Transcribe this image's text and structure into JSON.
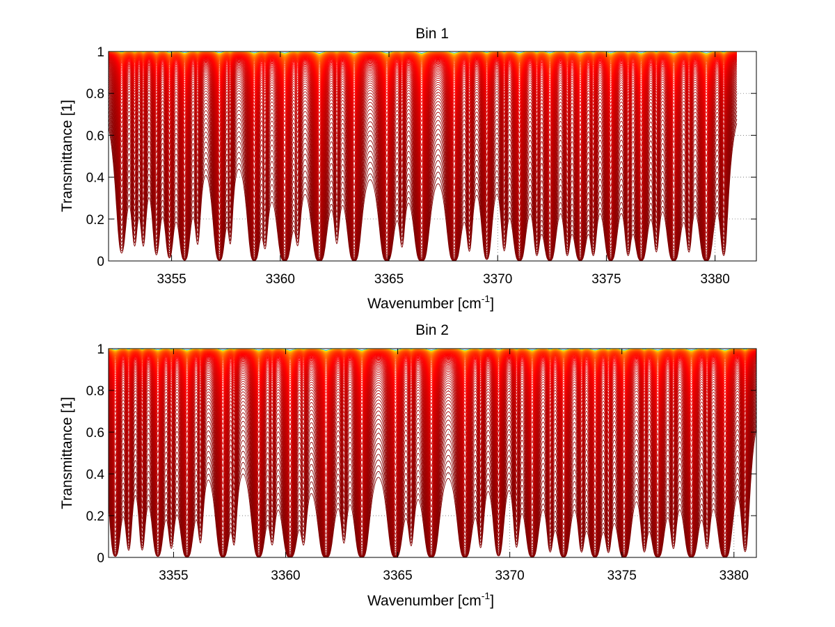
{
  "chart_data": [
    {
      "type": "line",
      "title": "Bin 1",
      "xlabel_main": "Wavenumber [cm",
      "xlabel_sup": "-1",
      "xlabel_end": "]",
      "ylabel": "Transmittance [1]",
      "xlim": [
        3352.1,
        3381.9
      ],
      "ylim": [
        0,
        1
      ],
      "x_data_end": 3381.0,
      "xticks": [
        3355,
        3360,
        3365,
        3370,
        3375,
        3380
      ],
      "yticks": [
        0,
        0.2,
        0.4,
        0.6,
        0.8,
        1
      ],
      "grid": true,
      "n_series": 90,
      "colormap": "jet",
      "absorption_lines": [
        [
          3352.7,
          0.33,
          0.18
        ],
        [
          3353.3,
          0.22,
          0.13
        ],
        [
          3353.7,
          0.22,
          0.12
        ],
        [
          3354.3,
          0.33,
          0.14
        ],
        [
          3354.9,
          0.4,
          0.14
        ],
        [
          3355.6,
          0.58,
          0.16
        ],
        [
          3356.2,
          0.2,
          0.12
        ],
        [
          3357.2,
          0.62,
          0.16
        ],
        [
          3357.7,
          0.18,
          0.1
        ],
        [
          3358.8,
          0.66,
          0.16
        ],
        [
          3359.3,
          0.2,
          0.12
        ],
        [
          3360.2,
          0.72,
          0.18
        ],
        [
          3360.8,
          0.18,
          0.12
        ],
        [
          3361.8,
          0.78,
          0.18
        ],
        [
          3362.6,
          0.18,
          0.12
        ],
        [
          3363.4,
          0.72,
          0.17
        ],
        [
          3364.9,
          0.72,
          0.18
        ],
        [
          3365.6,
          0.2,
          0.12
        ],
        [
          3366.5,
          0.78,
          0.18
        ],
        [
          3368.0,
          0.72,
          0.18
        ],
        [
          3368.7,
          0.25,
          0.12
        ],
        [
          3369.5,
          0.5,
          0.15
        ],
        [
          3370.3,
          0.25,
          0.12
        ],
        [
          3371.0,
          0.68,
          0.17
        ],
        [
          3371.8,
          0.3,
          0.12
        ],
        [
          3372.4,
          0.65,
          0.17
        ],
        [
          3373.2,
          0.3,
          0.12
        ],
        [
          3373.8,
          0.64,
          0.17
        ],
        [
          3374.4,
          0.3,
          0.12
        ],
        [
          3375.2,
          0.66,
          0.17
        ],
        [
          3376.0,
          0.3,
          0.12
        ],
        [
          3376.6,
          0.65,
          0.17
        ],
        [
          3377.3,
          0.25,
          0.12
        ],
        [
          3378.1,
          0.68,
          0.18
        ],
        [
          3378.8,
          0.25,
          0.12
        ],
        [
          3379.6,
          0.72,
          0.18
        ],
        [
          3380.4,
          0.35,
          0.13
        ]
      ]
    },
    {
      "type": "line",
      "title": "Bin 2",
      "xlabel_main": "Wavenumber [cm",
      "xlabel_sup": "-1",
      "xlabel_end": "]",
      "ylabel": "Transmittance [1]",
      "xlim": [
        3352.1,
        3381.0
      ],
      "ylim": [
        0,
        1
      ],
      "x_data_end": 3381.0,
      "xticks": [
        3355,
        3360,
        3365,
        3370,
        3375,
        3380
      ],
      "yticks": [
        0,
        0.2,
        0.4,
        0.6,
        0.8,
        1
      ],
      "grid": true,
      "n_series": 90,
      "colormap": "jet",
      "absorption_lines": [
        [
          3352.4,
          0.55,
          0.16
        ],
        [
          3353.0,
          0.3,
          0.12
        ],
        [
          3353.6,
          0.3,
          0.12
        ],
        [
          3354.3,
          0.55,
          0.16
        ],
        [
          3354.9,
          0.25,
          0.12
        ],
        [
          3355.6,
          0.66,
          0.17
        ],
        [
          3356.2,
          0.2,
          0.11
        ],
        [
          3357.2,
          0.68,
          0.17
        ],
        [
          3357.7,
          0.2,
          0.1
        ],
        [
          3358.8,
          0.66,
          0.17
        ],
        [
          3359.4,
          0.2,
          0.12
        ],
        [
          3360.2,
          0.74,
          0.18
        ],
        [
          3360.8,
          0.2,
          0.12
        ],
        [
          3361.8,
          0.78,
          0.18
        ],
        [
          3362.6,
          0.2,
          0.12
        ],
        [
          3363.4,
          0.74,
          0.17
        ],
        [
          3364.9,
          0.72,
          0.18
        ],
        [
          3365.6,
          0.22,
          0.12
        ],
        [
          3366.5,
          0.74,
          0.18
        ],
        [
          3368.0,
          0.7,
          0.18
        ],
        [
          3368.7,
          0.25,
          0.12
        ],
        [
          3369.5,
          0.5,
          0.15
        ],
        [
          3370.3,
          0.25,
          0.12
        ],
        [
          3371.0,
          0.66,
          0.17
        ],
        [
          3371.8,
          0.3,
          0.12
        ],
        [
          3372.4,
          0.64,
          0.17
        ],
        [
          3373.2,
          0.3,
          0.12
        ],
        [
          3373.8,
          0.64,
          0.17
        ],
        [
          3374.4,
          0.3,
          0.12
        ],
        [
          3375.1,
          0.7,
          0.17
        ],
        [
          3376.0,
          0.3,
          0.12
        ],
        [
          3376.6,
          0.68,
          0.17
        ],
        [
          3377.3,
          0.25,
          0.12
        ],
        [
          3378.1,
          0.7,
          0.18
        ],
        [
          3378.8,
          0.25,
          0.12
        ],
        [
          3379.6,
          0.72,
          0.18
        ],
        [
          3380.5,
          0.35,
          0.13
        ]
      ]
    }
  ]
}
